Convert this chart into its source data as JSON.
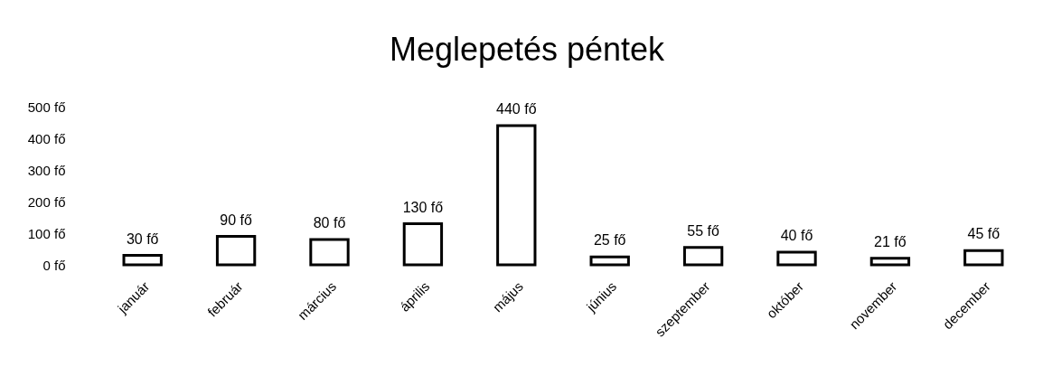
{
  "chart_data": {
    "type": "bar",
    "title": "Meglepetés péntek",
    "categories": [
      "január",
      "február",
      "március",
      "április",
      "május",
      "június",
      "szeptember",
      "október",
      "november",
      "december"
    ],
    "values": [
      30,
      90,
      80,
      130,
      440,
      25,
      55,
      40,
      21,
      45
    ],
    "value_labels": [
      "30 fő",
      "90 fő",
      "80 fő",
      "130 fő",
      "440 fő",
      "25 fő",
      "55 fő",
      "40 fő",
      "21 fő",
      "45 fő"
    ],
    "color": "#000000",
    "ylim": [
      0,
      500
    ],
    "yticks": [
      {
        "value": 0,
        "label": "0 fő"
      },
      {
        "value": 100,
        "label": "100 fő"
      },
      {
        "value": 200,
        "label": "200 fő"
      },
      {
        "value": 300,
        "label": "300 fő"
      },
      {
        "value": 400,
        "label": "400 fő"
      },
      {
        "value": 500,
        "label": "500 fő"
      }
    ]
  }
}
